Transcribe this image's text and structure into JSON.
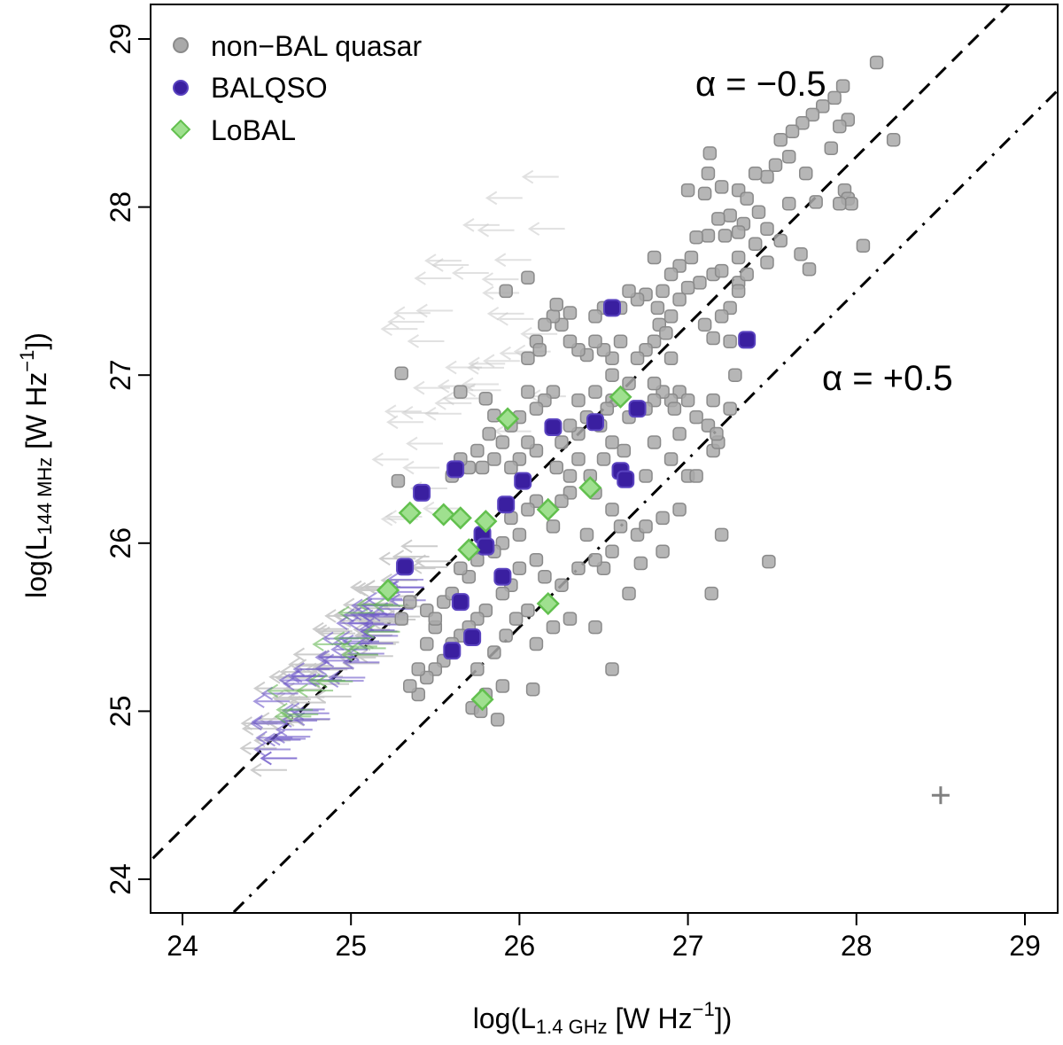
{
  "chart_data": {
    "type": "scatter",
    "xlabel": "log(L1.4 GHz [W Hz−1])",
    "ylabel": "log(L144 MHz [W Hz−1])",
    "xlabel_parts": {
      "pre": "log(L",
      "sub": "1.4 GHz",
      "mid": " [W Hz",
      "sup": "−1",
      "post": "])"
    },
    "ylabel_parts": {
      "pre": "log(L",
      "sub": "144 MHz",
      "mid": " [W Hz",
      "sup": "−1",
      "post": "])"
    },
    "xlim": [
      23.84,
      29.2
    ],
    "ylim": [
      23.8,
      29.1
    ],
    "x_ticks": [
      24,
      25,
      26,
      27,
      28,
      29
    ],
    "x_tick_labels": [
      "24",
      "25",
      "26",
      "27",
      "28",
      "29"
    ],
    "y_ticks": [
      24,
      25,
      26,
      27,
      28,
      29
    ],
    "y_tick_labels": [
      "24",
      "25",
      "26",
      "27",
      "28",
      "29"
    ],
    "grid": false,
    "legend_position": "top-left",
    "colors": {
      "nonbal_fill": "#a9a9a9",
      "nonbal_edge": "#8a8a8a",
      "balqso_fill": "#3a1fa0",
      "balqso_edge": "#5a43c0",
      "lobal_fill": "#9fe08f",
      "lobal_edge": "#62c04e",
      "arrow_grey": "#c8c8c8",
      "arrow_purple": "#6a55c8",
      "arrow_green": "#66b855",
      "line": "#000000",
      "error_cross": "#808080"
    },
    "legend": [
      {
        "label": "non−BAL quasar",
        "marker": "circle-grey"
      },
      {
        "label": "BALQSO",
        "marker": "circle-purple"
      },
      {
        "label": "LoBAL",
        "marker": "diamond-green"
      }
    ],
    "lines": [
      {
        "name": "alpha = -0.5",
        "label": "α = −0.5",
        "style": "dashed",
        "intercept": 0.3,
        "slope": 1.0
      },
      {
        "name": "alpha = +0.5",
        "label": "α = +0.5",
        "style": "dash-dot",
        "intercept": -0.5,
        "slope": 1.0
      }
    ],
    "error_bar": {
      "x": 28.5,
      "y": 24.5
    },
    "series": [
      {
        "name": "non-BAL quasar",
        "marker": "circle",
        "points": [
          [
            28.12,
            28.86
          ],
          [
            27.92,
            28.72
          ],
          [
            27.87,
            28.65
          ],
          [
            27.8,
            28.6
          ],
          [
            27.74,
            28.55
          ],
          [
            27.68,
            28.5
          ],
          [
            27.62,
            28.45
          ],
          [
            27.95,
            28.52
          ],
          [
            27.9,
            28.48
          ],
          [
            27.85,
            28.35
          ],
          [
            28.22,
            28.4
          ],
          [
            27.55,
            28.4
          ],
          [
            27.6,
            28.3
          ],
          [
            27.7,
            28.2
          ],
          [
            27.52,
            28.25
          ],
          [
            27.47,
            28.18
          ],
          [
            27.4,
            28.2
          ],
          [
            27.3,
            28.1
          ],
          [
            27.35,
            28.05
          ],
          [
            27.2,
            28.12
          ],
          [
            27.13,
            28.32
          ],
          [
            27.12,
            28.2
          ],
          [
            27.1,
            28.08
          ],
          [
            27.0,
            28.1
          ],
          [
            27.93,
            28.1
          ],
          [
            27.95,
            28.05
          ],
          [
            27.97,
            28.02
          ],
          [
            27.9,
            28.02
          ],
          [
            27.76,
            28.03
          ],
          [
            27.6,
            28.02
          ],
          [
            27.25,
            27.95
          ],
          [
            27.18,
            27.93
          ],
          [
            27.42,
            27.97
          ],
          [
            27.33,
            27.9
          ],
          [
            27.3,
            27.85
          ],
          [
            27.22,
            27.83
          ],
          [
            27.12,
            27.83
          ],
          [
            27.05,
            27.82
          ],
          [
            27.47,
            27.87
          ],
          [
            27.55,
            27.8
          ],
          [
            27.67,
            27.72
          ],
          [
            27.72,
            27.63
          ],
          [
            28.04,
            27.77
          ],
          [
            27.15,
            27.6
          ],
          [
            27.07,
            27.55
          ],
          [
            26.95,
            27.65
          ],
          [
            27.02,
            27.7
          ],
          [
            27.2,
            27.62
          ],
          [
            27.3,
            27.55
          ],
          [
            27.47,
            27.67
          ],
          [
            26.9,
            27.6
          ],
          [
            26.85,
            27.5
          ],
          [
            26.95,
            27.45
          ],
          [
            26.82,
            27.4
          ],
          [
            26.75,
            27.48
          ],
          [
            26.7,
            27.45
          ],
          [
            26.65,
            27.5
          ],
          [
            26.6,
            27.4
          ],
          [
            26.5,
            27.4
          ],
          [
            26.45,
            27.35
          ],
          [
            26.8,
            27.7
          ],
          [
            26.83,
            27.3
          ],
          [
            26.8,
            27.2
          ],
          [
            26.87,
            27.25
          ],
          [
            26.9,
            27.1
          ],
          [
            26.75,
            27.15
          ],
          [
            26.7,
            27.1
          ],
          [
            26.6,
            27.2
          ],
          [
            26.55,
            27.1
          ],
          [
            26.5,
            27.15
          ],
          [
            26.45,
            27.2
          ],
          [
            26.4,
            27.12
          ],
          [
            26.35,
            27.15
          ],
          [
            26.3,
            27.2
          ],
          [
            26.25,
            27.3
          ],
          [
            26.2,
            27.35
          ],
          [
            26.15,
            27.3
          ],
          [
            26.1,
            27.2
          ],
          [
            26.05,
            27.1
          ],
          [
            26.12,
            27.15
          ],
          [
            26.95,
            26.9
          ],
          [
            26.9,
            26.85
          ],
          [
            26.85,
            26.9
          ],
          [
            26.92,
            26.8
          ],
          [
            26.8,
            26.85
          ],
          [
            26.75,
            26.8
          ],
          [
            26.65,
            26.75
          ],
          [
            26.55,
            26.85
          ],
          [
            26.52,
            26.8
          ],
          [
            26.48,
            26.7
          ],
          [
            26.4,
            26.75
          ],
          [
            26.35,
            26.65
          ],
          [
            26.3,
            26.7
          ],
          [
            26.25,
            26.6
          ],
          [
            26.2,
            26.9
          ],
          [
            26.15,
            26.85
          ],
          [
            26.1,
            26.8
          ],
          [
            26.05,
            26.9
          ],
          [
            26.0,
            26.75
          ],
          [
            25.95,
            26.7
          ],
          [
            25.9,
            26.6
          ],
          [
            25.85,
            26.5
          ],
          [
            25.82,
            26.65
          ],
          [
            25.78,
            26.45
          ],
          [
            25.75,
            26.55
          ],
          [
            25.7,
            26.45
          ],
          [
            25.65,
            26.5
          ],
          [
            25.6,
            26.4
          ],
          [
            26.35,
            26.5
          ],
          [
            26.3,
            26.4
          ],
          [
            26.22,
            26.45
          ],
          [
            26.1,
            26.55
          ],
          [
            26.05,
            26.6
          ],
          [
            26.0,
            26.5
          ],
          [
            25.95,
            26.45
          ],
          [
            26.5,
            26.5
          ],
          [
            26.42,
            26.4
          ],
          [
            26.45,
            26.3
          ],
          [
            26.55,
            26.6
          ],
          [
            26.62,
            26.55
          ],
          [
            26.75,
            26.4
          ],
          [
            26.8,
            26.6
          ],
          [
            27.0,
            26.4
          ],
          [
            27.15,
            26.55
          ],
          [
            27.18,
            26.6
          ],
          [
            27.12,
            26.7
          ],
          [
            27.17,
            26.65
          ],
          [
            27.0,
            26.85
          ],
          [
            27.28,
            27.0
          ],
          [
            27.25,
            26.8
          ],
          [
            26.55,
            26.2
          ],
          [
            26.6,
            26.1
          ],
          [
            26.4,
            26.05
          ],
          [
            26.3,
            26.3
          ],
          [
            26.25,
            26.25
          ],
          [
            26.1,
            26.25
          ],
          [
            26.05,
            26.2
          ],
          [
            26.2,
            26.1
          ],
          [
            26.0,
            26.05
          ],
          [
            25.95,
            26.15
          ],
          [
            25.9,
            26.0
          ],
          [
            25.85,
            25.95
          ],
          [
            25.75,
            25.9
          ],
          [
            25.7,
            25.8
          ],
          [
            25.65,
            25.85
          ],
          [
            26.7,
            26.05
          ],
          [
            26.85,
            25.95
          ],
          [
            26.55,
            25.95
          ],
          [
            26.5,
            25.85
          ],
          [
            26.45,
            25.9
          ],
          [
            26.35,
            25.85
          ],
          [
            26.25,
            25.75
          ],
          [
            26.15,
            25.8
          ],
          [
            26.1,
            25.9
          ],
          [
            26.0,
            25.85
          ],
          [
            25.95,
            25.75
          ],
          [
            25.9,
            25.7
          ],
          [
            25.8,
            25.6
          ],
          [
            25.75,
            25.55
          ],
          [
            25.7,
            25.5
          ],
          [
            25.65,
            25.45
          ],
          [
            25.6,
            25.4
          ],
          [
            25.55,
            25.3
          ],
          [
            25.5,
            25.25
          ],
          [
            25.45,
            25.2
          ],
          [
            25.4,
            25.1
          ],
          [
            25.45,
            25.6
          ],
          [
            25.5,
            25.5
          ],
          [
            25.55,
            25.65
          ],
          [
            25.6,
            25.7
          ],
          [
            26.3,
            25.55
          ],
          [
            26.2,
            25.5
          ],
          [
            26.1,
            25.4
          ],
          [
            26.05,
            25.6
          ],
          [
            25.98,
            25.55
          ],
          [
            25.92,
            25.45
          ],
          [
            25.85,
            25.35
          ],
          [
            25.9,
            25.15
          ],
          [
            25.75,
            25.25
          ],
          [
            25.8,
            25.1
          ],
          [
            26.08,
            25.13
          ],
          [
            25.72,
            25.02
          ],
          [
            25.77,
            25.0
          ],
          [
            25.87,
            24.95
          ],
          [
            26.45,
            25.5
          ],
          [
            26.55,
            25.25
          ],
          [
            26.65,
            25.7
          ],
          [
            26.72,
            25.88
          ],
          [
            27.14,
            25.7
          ],
          [
            27.2,
            26.05
          ],
          [
            27.48,
            25.89
          ],
          [
            27.3,
            27.5
          ],
          [
            27.25,
            27.2
          ],
          [
            27.15,
            26.85
          ],
          [
            27.05,
            26.4
          ],
          [
            26.95,
            26.2
          ],
          [
            26.85,
            26.15
          ],
          [
            26.75,
            26.1
          ],
          [
            26.9,
            26.5
          ],
          [
            26.95,
            26.65
          ],
          [
            27.05,
            26.75
          ],
          [
            26.8,
            26.95
          ],
          [
            26.65,
            26.95
          ],
          [
            26.55,
            27.0
          ],
          [
            26.45,
            26.9
          ],
          [
            26.35,
            26.85
          ],
          [
            25.35,
            25.15
          ],
          [
            25.4,
            25.25
          ],
          [
            25.45,
            25.4
          ],
          [
            25.5,
            25.55
          ],
          [
            25.3,
            25.55
          ],
          [
            25.35,
            25.65
          ],
          [
            25.28,
            26.37
          ],
          [
            25.3,
            27.01
          ],
          [
            25.65,
            26.9
          ],
          [
            25.8,
            26.86
          ],
          [
            25.85,
            26.76
          ],
          [
            26.05,
            27.58
          ],
          [
            25.92,
            27.5
          ],
          [
            26.22,
            27.42
          ],
          [
            26.3,
            27.37
          ],
          [
            27.1,
            27.3
          ],
          [
            27.15,
            27.22
          ],
          [
            27.25,
            27.4
          ],
          [
            27.2,
            27.35
          ],
          [
            26.9,
            27.35
          ],
          [
            27.0,
            27.52
          ],
          [
            27.35,
            27.6
          ],
          [
            27.3,
            27.7
          ],
          [
            27.4,
            27.78
          ]
        ]
      },
      {
        "name": "BALQSO",
        "marker": "circle",
        "points": [
          [
            26.55,
            27.4
          ],
          [
            27.35,
            27.21
          ],
          [
            26.45,
            26.72
          ],
          [
            26.7,
            26.8
          ],
          [
            26.2,
            26.69
          ],
          [
            26.6,
            26.43
          ],
          [
            26.63,
            26.38
          ],
          [
            26.02,
            26.37
          ],
          [
            25.62,
            26.44
          ],
          [
            25.42,
            26.3
          ],
          [
            25.92,
            26.23
          ],
          [
            25.32,
            25.86
          ],
          [
            25.78,
            26.05
          ],
          [
            25.8,
            25.98
          ],
          [
            25.9,
            25.8
          ],
          [
            25.65,
            25.65
          ],
          [
            25.72,
            25.44
          ],
          [
            25.6,
            25.36
          ]
        ]
      },
      {
        "name": "LoBAL",
        "marker": "diamond",
        "points": [
          [
            26.6,
            26.87
          ],
          [
            25.93,
            26.74
          ],
          [
            26.42,
            26.33
          ],
          [
            25.35,
            26.18
          ],
          [
            25.55,
            26.17
          ],
          [
            25.65,
            26.15
          ],
          [
            25.8,
            26.13
          ],
          [
            26.17,
            26.2
          ],
          [
            25.7,
            25.96
          ],
          [
            25.22,
            25.72
          ],
          [
            26.17,
            25.64
          ],
          [
            25.78,
            25.07
          ]
        ]
      }
    ]
  }
}
